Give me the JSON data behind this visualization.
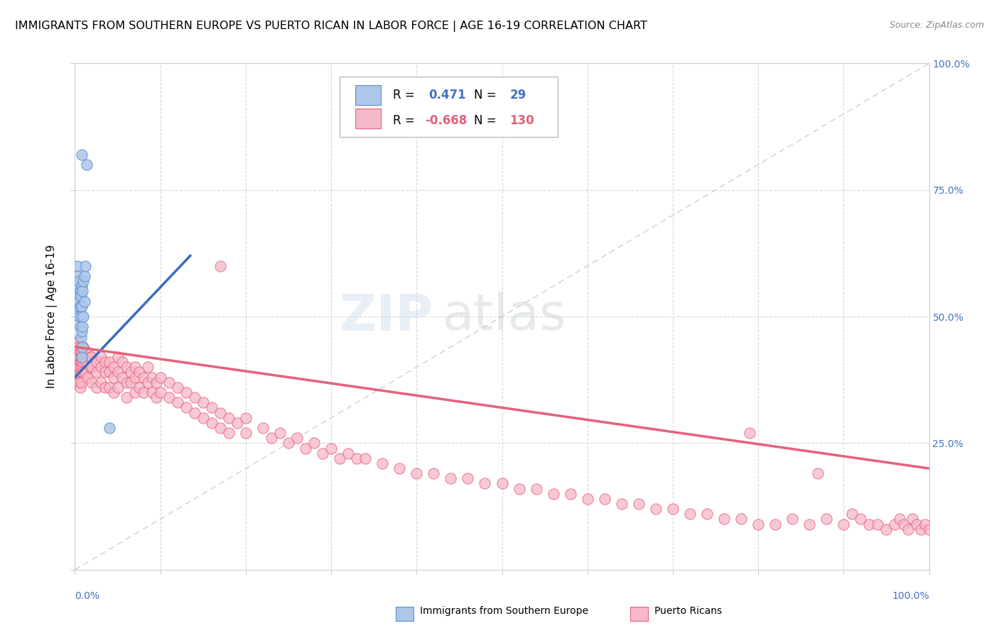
{
  "title": "IMMIGRANTS FROM SOUTHERN EUROPE VS PUERTO RICAN IN LABOR FORCE | AGE 16-19 CORRELATION CHART",
  "source": "Source: ZipAtlas.com",
  "ylabel": "In Labor Force | Age 16-19",
  "watermark_zip": "ZIP",
  "watermark_atlas": "atlas",
  "blue_color": "#aec6e8",
  "pink_color": "#f5b8c8",
  "blue_edge_color": "#5b8fd4",
  "pink_edge_color": "#e8607a",
  "blue_line_color": "#3a6bbf",
  "pink_line_color": "#e8607a",
  "grid_color": "#d8d8d8",
  "background_color": "#ffffff",
  "xlim": [
    0.0,
    1.0
  ],
  "ylim": [
    0.0,
    1.0
  ],
  "blue_scatter": [
    [
      0.008,
      0.82
    ],
    [
      0.014,
      0.8
    ],
    [
      0.002,
      0.56
    ],
    [
      0.003,
      0.6
    ],
    [
      0.003,
      0.58
    ],
    [
      0.004,
      0.54
    ],
    [
      0.004,
      0.52
    ],
    [
      0.005,
      0.57
    ],
    [
      0.005,
      0.53
    ],
    [
      0.005,
      0.5
    ],
    [
      0.006,
      0.55
    ],
    [
      0.006,
      0.52
    ],
    [
      0.006,
      0.48
    ],
    [
      0.007,
      0.54
    ],
    [
      0.007,
      0.5
    ],
    [
      0.007,
      0.46
    ],
    [
      0.008,
      0.56
    ],
    [
      0.008,
      0.52
    ],
    [
      0.008,
      0.47
    ],
    [
      0.009,
      0.55
    ],
    [
      0.009,
      0.48
    ],
    [
      0.01,
      0.57
    ],
    [
      0.01,
      0.5
    ],
    [
      0.011,
      0.58
    ],
    [
      0.011,
      0.53
    ],
    [
      0.012,
      0.6
    ],
    [
      0.04,
      0.28
    ],
    [
      0.008,
      0.42
    ],
    [
      0.009,
      0.44
    ]
  ],
  "pink_scatter": [
    [
      0.001,
      0.44
    ],
    [
      0.001,
      0.42
    ],
    [
      0.002,
      0.45
    ],
    [
      0.002,
      0.41
    ],
    [
      0.003,
      0.44
    ],
    [
      0.003,
      0.42
    ],
    [
      0.003,
      0.4
    ],
    [
      0.004,
      0.45
    ],
    [
      0.004,
      0.43
    ],
    [
      0.004,
      0.41
    ],
    [
      0.004,
      0.38
    ],
    [
      0.005,
      0.44
    ],
    [
      0.005,
      0.42
    ],
    [
      0.005,
      0.4
    ],
    [
      0.005,
      0.37
    ],
    [
      0.006,
      0.43
    ],
    [
      0.006,
      0.41
    ],
    [
      0.006,
      0.39
    ],
    [
      0.006,
      0.36
    ],
    [
      0.007,
      0.44
    ],
    [
      0.007,
      0.42
    ],
    [
      0.007,
      0.4
    ],
    [
      0.007,
      0.37
    ],
    [
      0.008,
      0.43
    ],
    [
      0.008,
      0.41
    ],
    [
      0.008,
      0.39
    ],
    [
      0.009,
      0.42
    ],
    [
      0.009,
      0.4
    ],
    [
      0.01,
      0.44
    ],
    [
      0.01,
      0.41
    ],
    [
      0.01,
      0.39
    ],
    [
      0.012,
      0.43
    ],
    [
      0.012,
      0.41
    ],
    [
      0.012,
      0.39
    ],
    [
      0.015,
      0.43
    ],
    [
      0.015,
      0.41
    ],
    [
      0.015,
      0.38
    ],
    [
      0.018,
      0.42
    ],
    [
      0.018,
      0.4
    ],
    [
      0.02,
      0.42
    ],
    [
      0.02,
      0.4
    ],
    [
      0.02,
      0.37
    ],
    [
      0.025,
      0.41
    ],
    [
      0.025,
      0.39
    ],
    [
      0.025,
      0.36
    ],
    [
      0.03,
      0.42
    ],
    [
      0.03,
      0.4
    ],
    [
      0.03,
      0.37
    ],
    [
      0.035,
      0.41
    ],
    [
      0.035,
      0.39
    ],
    [
      0.035,
      0.36
    ],
    [
      0.04,
      0.41
    ],
    [
      0.04,
      0.39
    ],
    [
      0.04,
      0.36
    ],
    [
      0.045,
      0.4
    ],
    [
      0.045,
      0.38
    ],
    [
      0.045,
      0.35
    ],
    [
      0.05,
      0.42
    ],
    [
      0.05,
      0.39
    ],
    [
      0.05,
      0.36
    ],
    [
      0.055,
      0.41
    ],
    [
      0.055,
      0.38
    ],
    [
      0.06,
      0.4
    ],
    [
      0.06,
      0.37
    ],
    [
      0.06,
      0.34
    ],
    [
      0.065,
      0.39
    ],
    [
      0.065,
      0.37
    ],
    [
      0.07,
      0.4
    ],
    [
      0.07,
      0.38
    ],
    [
      0.07,
      0.35
    ],
    [
      0.075,
      0.39
    ],
    [
      0.075,
      0.36
    ],
    [
      0.08,
      0.38
    ],
    [
      0.08,
      0.35
    ],
    [
      0.085,
      0.4
    ],
    [
      0.085,
      0.37
    ],
    [
      0.09,
      0.38
    ],
    [
      0.09,
      0.35
    ],
    [
      0.095,
      0.37
    ],
    [
      0.095,
      0.34
    ],
    [
      0.1,
      0.38
    ],
    [
      0.1,
      0.35
    ],
    [
      0.11,
      0.37
    ],
    [
      0.11,
      0.34
    ],
    [
      0.12,
      0.36
    ],
    [
      0.12,
      0.33
    ],
    [
      0.13,
      0.35
    ],
    [
      0.13,
      0.32
    ],
    [
      0.14,
      0.34
    ],
    [
      0.14,
      0.31
    ],
    [
      0.15,
      0.33
    ],
    [
      0.15,
      0.3
    ],
    [
      0.16,
      0.32
    ],
    [
      0.16,
      0.29
    ],
    [
      0.17,
      0.31
    ],
    [
      0.17,
      0.28
    ],
    [
      0.18,
      0.3
    ],
    [
      0.18,
      0.27
    ],
    [
      0.19,
      0.29
    ],
    [
      0.2,
      0.3
    ],
    [
      0.2,
      0.27
    ],
    [
      0.22,
      0.28
    ],
    [
      0.23,
      0.26
    ],
    [
      0.24,
      0.27
    ],
    [
      0.25,
      0.25
    ],
    [
      0.26,
      0.26
    ],
    [
      0.27,
      0.24
    ],
    [
      0.28,
      0.25
    ],
    [
      0.29,
      0.23
    ],
    [
      0.3,
      0.24
    ],
    [
      0.31,
      0.22
    ],
    [
      0.32,
      0.23
    ],
    [
      0.33,
      0.22
    ],
    [
      0.34,
      0.22
    ],
    [
      0.36,
      0.21
    ],
    [
      0.38,
      0.2
    ],
    [
      0.4,
      0.19
    ],
    [
      0.42,
      0.19
    ],
    [
      0.44,
      0.18
    ],
    [
      0.46,
      0.18
    ],
    [
      0.48,
      0.17
    ],
    [
      0.5,
      0.17
    ],
    [
      0.52,
      0.16
    ],
    [
      0.54,
      0.16
    ],
    [
      0.56,
      0.15
    ],
    [
      0.58,
      0.15
    ],
    [
      0.17,
      0.6
    ],
    [
      0.6,
      0.14
    ],
    [
      0.62,
      0.14
    ],
    [
      0.64,
      0.13
    ],
    [
      0.66,
      0.13
    ],
    [
      0.68,
      0.12
    ],
    [
      0.7,
      0.12
    ],
    [
      0.72,
      0.11
    ],
    [
      0.74,
      0.11
    ],
    [
      0.76,
      0.1
    ],
    [
      0.78,
      0.1
    ],
    [
      0.79,
      0.27
    ],
    [
      0.8,
      0.09
    ],
    [
      0.82,
      0.09
    ],
    [
      0.84,
      0.1
    ],
    [
      0.86,
      0.09
    ],
    [
      0.87,
      0.19
    ],
    [
      0.88,
      0.1
    ],
    [
      0.9,
      0.09
    ],
    [
      0.91,
      0.11
    ],
    [
      0.92,
      0.1
    ],
    [
      0.93,
      0.09
    ],
    [
      0.94,
      0.09
    ],
    [
      0.95,
      0.08
    ],
    [
      0.96,
      0.09
    ],
    [
      0.965,
      0.1
    ],
    [
      0.97,
      0.09
    ],
    [
      0.975,
      0.08
    ],
    [
      0.98,
      0.1
    ],
    [
      0.985,
      0.09
    ],
    [
      0.99,
      0.08
    ],
    [
      0.995,
      0.09
    ],
    [
      1.0,
      0.08
    ]
  ],
  "blue_trend_x": [
    0.0,
    0.135
  ],
  "blue_trend_y": [
    0.38,
    0.62
  ],
  "pink_trend_x": [
    0.0,
    1.0
  ],
  "pink_trend_y": [
    0.44,
    0.2
  ]
}
